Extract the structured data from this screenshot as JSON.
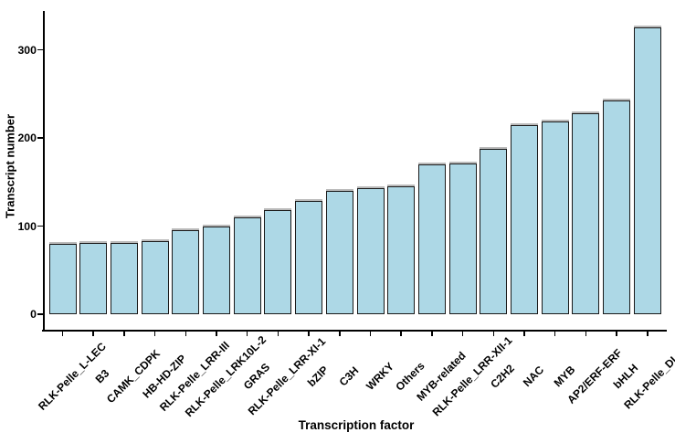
{
  "chart_data": {
    "type": "bar",
    "title": "",
    "xlabel": "Transcription factor",
    "ylabel": "Transcript number",
    "categories": [
      "RLK-Pelle_L-LEC",
      "B3",
      "CAMK_CDPK",
      "HB-HD-ZIP",
      "RLK-Pelle_LRR-III",
      "RLK-Pelle_LRK10L-2",
      "GRAS",
      "RLK-Pelle_LRR-XI-1",
      "bZIP",
      "C3H",
      "WRKY",
      "Others",
      "MYB-related",
      "RLK-Pelle_LRR-XII-1",
      "C2H2",
      "NAC",
      "MYB",
      "AP2/ERF-ERF",
      "bHLH",
      "RLK-Pelle_DLSV"
    ],
    "values": [
      80,
      81,
      81,
      83,
      95,
      100,
      110,
      118,
      128,
      140,
      143,
      145,
      170,
      171,
      188,
      215,
      219,
      228,
      243,
      325
    ],
    "yticks": [
      0,
      100,
      200,
      300
    ],
    "ylim": [
      0,
      340
    ],
    "grid": false,
    "legend": false,
    "bar_fill": "#ADD8E6",
    "bar_border": "#1A1A1A",
    "axis_color": "#000000",
    "text_color": "#000000"
  }
}
